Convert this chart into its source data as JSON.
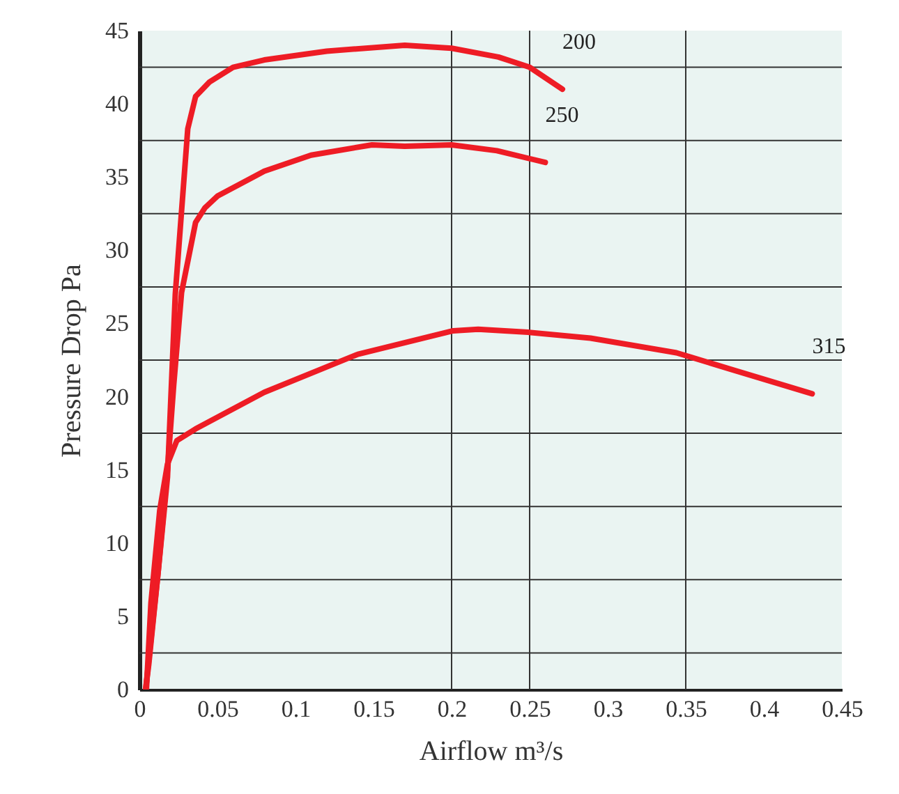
{
  "chart_data": {
    "type": "line",
    "xlabel": "Airflow m³/s",
    "ylabel": "Pressure Drop Pa",
    "xlim": [
      0,
      0.45
    ],
    "ylim": [
      0,
      45
    ],
    "xticks": [
      0,
      0.05,
      0.1,
      0.15,
      0.2,
      0.25,
      0.3,
      0.35,
      0.4,
      0.45
    ],
    "yticks": [
      0,
      5,
      10,
      15,
      20,
      25,
      30,
      35,
      40,
      45
    ],
    "grid": false,
    "series": [
      {
        "name": "200",
        "color": "#ee1c25",
        "x": [
          0.004,
          0.006,
          0.012,
          0.018,
          0.023,
          0.031,
          0.036,
          0.045,
          0.06,
          0.08,
          0.12,
          0.17,
          0.2,
          0.23,
          0.25,
          0.271
        ],
        "values": [
          0,
          1.7,
          8,
          14.5,
          27,
          38.3,
          40.5,
          41.5,
          42.5,
          43,
          43.6,
          44,
          43.8,
          43.2,
          42.5,
          41
        ]
      },
      {
        "name": "250",
        "color": "#ee1c25",
        "x": [
          0.004,
          0.012,
          0.018,
          0.022,
          0.027,
          0.036,
          0.042,
          0.05,
          0.08,
          0.11,
          0.149,
          0.17,
          0.2,
          0.229,
          0.26
        ],
        "values": [
          0,
          8,
          15,
          20.8,
          27.1,
          31.9,
          32.9,
          33.7,
          35.4,
          36.5,
          37.2,
          37.1,
          37.2,
          36.8,
          36
        ]
      },
      {
        "name": "315",
        "color": "#ee1c25",
        "x": [
          0.0045,
          0.0074,
          0.013,
          0.018,
          0.024,
          0.036,
          0.08,
          0.14,
          0.201,
          0.217,
          0.249,
          0.289,
          0.344,
          0.378,
          0.431
        ],
        "values": [
          0,
          5.9,
          12.2,
          15.4,
          17,
          17.8,
          20.3,
          22.9,
          24.5,
          24.6,
          24.4,
          24,
          23,
          21.9,
          20.2
        ]
      }
    ],
    "ref_lines": [
      {
        "axis": "y",
        "value": 2.5,
        "color": "#333333"
      },
      {
        "axis": "y",
        "value": 7.5,
        "color": "#333333"
      },
      {
        "axis": "y",
        "value": 12.5,
        "color": "#333333"
      },
      {
        "axis": "y",
        "value": 17.5,
        "color": "#333333"
      },
      {
        "axis": "y",
        "value": 22.5,
        "color": "#333333"
      },
      {
        "axis": "y",
        "value": 27.5,
        "color": "#333333"
      },
      {
        "axis": "y",
        "value": 32.5,
        "color": "#333333"
      },
      {
        "axis": "y",
        "value": 37.5,
        "color": "#333333"
      },
      {
        "axis": "y",
        "value": 42.5,
        "color": "#333333"
      },
      {
        "axis": "x",
        "value": 0.2,
        "color": "#333333"
      },
      {
        "axis": "x",
        "value": 0.25,
        "color": "#333333"
      },
      {
        "axis": "x",
        "value": 0.35,
        "color": "#333333"
      }
    ]
  }
}
